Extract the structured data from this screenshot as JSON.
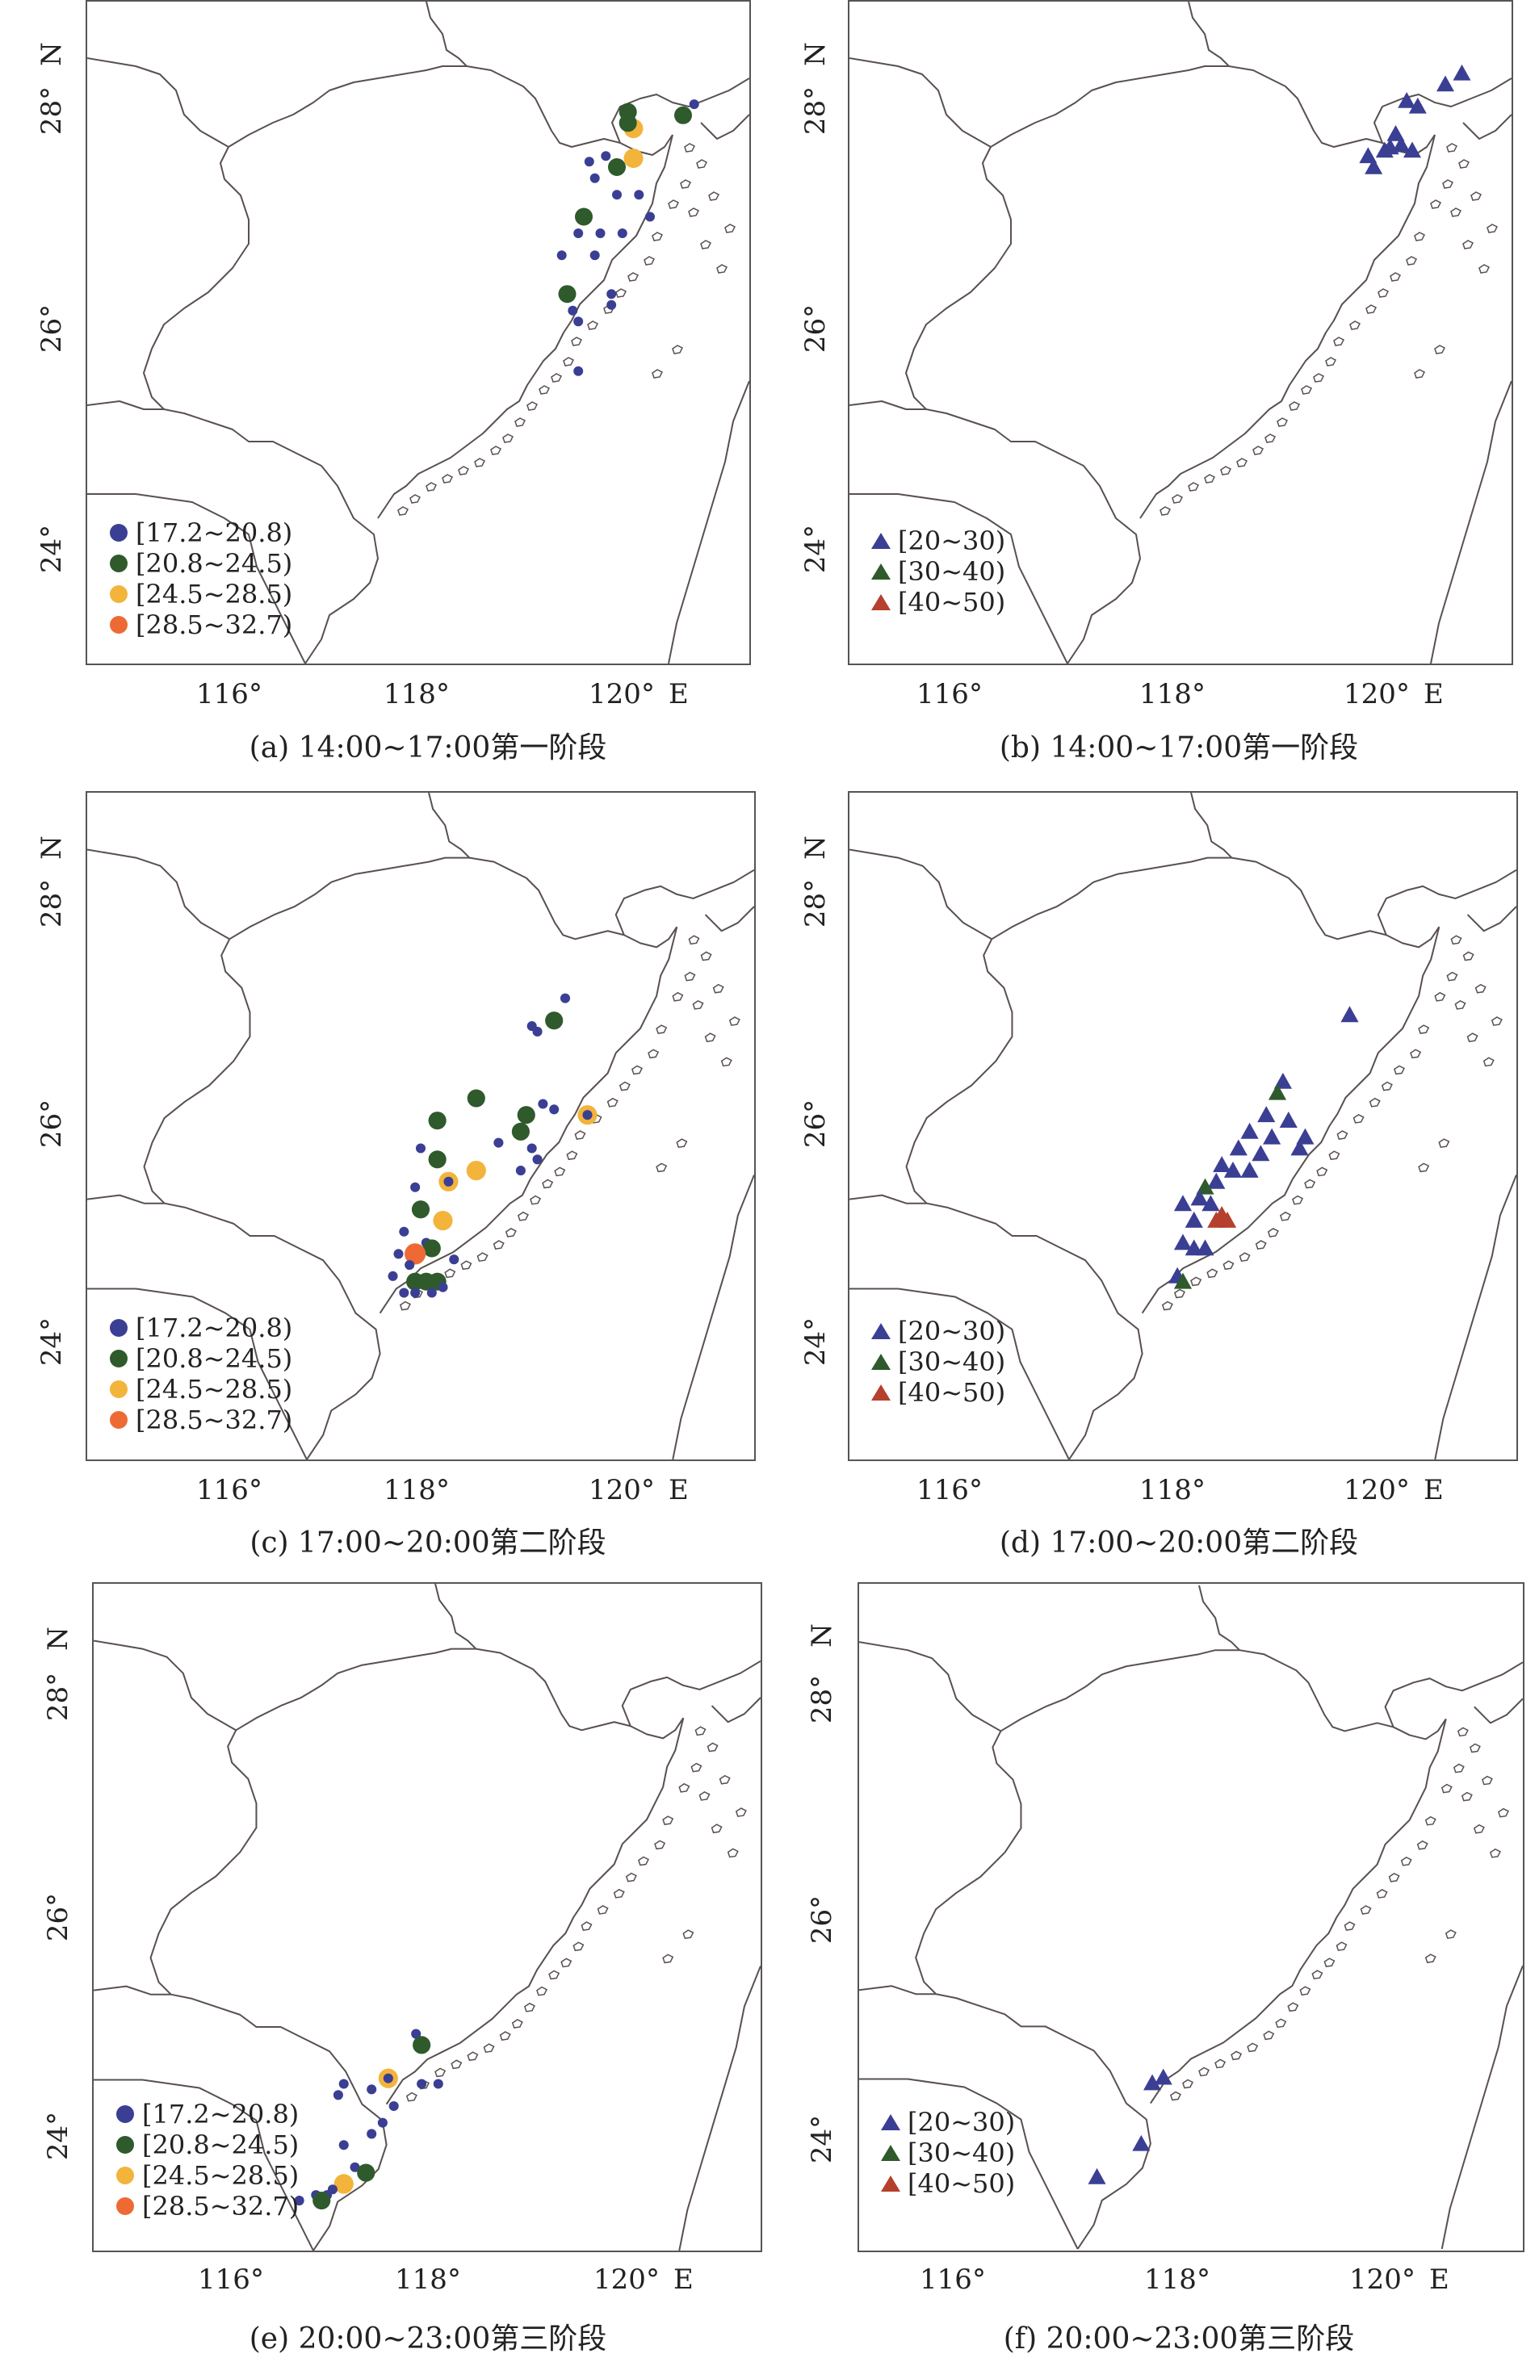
{
  "colors": {
    "blue": "#3a3f94",
    "green": "#2f5a2c",
    "yellow": "#f2b43a",
    "orange": "#ee6a35",
    "red": "#b5402d",
    "boundary": "#5a5050"
  },
  "legends": {
    "wind": [
      {
        "label": "[17.2~20.8)",
        "color_key": "blue"
      },
      {
        "label": "[20.8~24.5)",
        "color_key": "green"
      },
      {
        "label": "[24.5~28.5)",
        "color_key": "yellow"
      },
      {
        "label": "[28.5~32.7)",
        "color_key": "orange"
      }
    ],
    "rain": [
      {
        "label": "[20~30)",
        "color_key": "blue"
      },
      {
        "label": "[30~40)",
        "color_key": "green"
      },
      {
        "label": "[40~50)",
        "color_key": "red"
      }
    ]
  },
  "panels": [
    {
      "id": "a",
      "caption": "(a) 14:00~17:00第一阶段",
      "legend": "wind",
      "marker": "circle",
      "x_ticks": [
        "116°",
        "118°",
        "120°"
      ],
      "y_ticks": [
        "24°",
        "26°",
        "28°"
      ],
      "x_unit": "E",
      "y_unit": "N",
      "points": [
        {
          "lon": 120.5,
          "lat": 28.07,
          "c": "blue",
          "s": 1
        },
        {
          "lon": 120.4,
          "lat": 27.97,
          "c": "green",
          "s": 2
        },
        {
          "lon": 119.9,
          "lat": 28.0,
          "c": "green",
          "s": 2
        },
        {
          "lon": 119.95,
          "lat": 27.85,
          "c": "yellow",
          "s": 3
        },
        {
          "lon": 119.9,
          "lat": 27.9,
          "c": "green",
          "s": 2
        },
        {
          "lon": 119.95,
          "lat": 27.58,
          "c": "yellow",
          "s": 3
        },
        {
          "lon": 119.8,
          "lat": 27.5,
          "c": "green",
          "s": 2
        },
        {
          "lon": 119.7,
          "lat": 27.6,
          "c": "blue",
          "s": 1
        },
        {
          "lon": 119.55,
          "lat": 27.55,
          "c": "blue",
          "s": 1
        },
        {
          "lon": 119.6,
          "lat": 27.4,
          "c": "blue",
          "s": 1
        },
        {
          "lon": 119.8,
          "lat": 27.25,
          "c": "blue",
          "s": 1
        },
        {
          "lon": 120.0,
          "lat": 27.25,
          "c": "blue",
          "s": 1
        },
        {
          "lon": 119.5,
          "lat": 27.05,
          "c": "green",
          "s": 2
        },
        {
          "lon": 119.45,
          "lat": 26.9,
          "c": "blue",
          "s": 1
        },
        {
          "lon": 119.65,
          "lat": 26.9,
          "c": "blue",
          "s": 1
        },
        {
          "lon": 119.85,
          "lat": 26.9,
          "c": "blue",
          "s": 1
        },
        {
          "lon": 120.1,
          "lat": 27.05,
          "c": "blue",
          "s": 1
        },
        {
          "lon": 119.3,
          "lat": 26.7,
          "c": "blue",
          "s": 1
        },
        {
          "lon": 119.6,
          "lat": 26.7,
          "c": "blue",
          "s": 1
        },
        {
          "lon": 119.35,
          "lat": 26.35,
          "c": "green",
          "s": 2
        },
        {
          "lon": 119.4,
          "lat": 26.2,
          "c": "blue",
          "s": 1
        },
        {
          "lon": 119.45,
          "lat": 26.1,
          "c": "blue",
          "s": 1
        },
        {
          "lon": 119.75,
          "lat": 26.35,
          "c": "blue",
          "s": 1
        },
        {
          "lon": 119.75,
          "lat": 26.25,
          "c": "blue",
          "s": 1
        },
        {
          "lon": 119.45,
          "lat": 25.65,
          "c": "blue",
          "s": 1
        }
      ]
    },
    {
      "id": "b",
      "caption": "(b) 14:00~17:00第一阶段",
      "legend": "rain",
      "marker": "triangle",
      "x_ticks": [
        "116°",
        "118°",
        "120°"
      ],
      "y_ticks": [
        "24°",
        "26°",
        "28°"
      ],
      "x_unit": "E",
      "y_unit": "N",
      "points": [
        {
          "lon": 120.55,
          "lat": 28.35,
          "c": "blue"
        },
        {
          "lon": 120.4,
          "lat": 28.25,
          "c": "blue"
        },
        {
          "lon": 120.05,
          "lat": 28.1,
          "c": "blue"
        },
        {
          "lon": 120.15,
          "lat": 28.05,
          "c": "blue"
        },
        {
          "lon": 119.95,
          "lat": 27.8,
          "c": "blue"
        },
        {
          "lon": 120.0,
          "lat": 27.7,
          "c": "blue"
        },
        {
          "lon": 120.1,
          "lat": 27.65,
          "c": "blue"
        },
        {
          "lon": 119.85,
          "lat": 27.65,
          "c": "blue"
        },
        {
          "lon": 119.7,
          "lat": 27.6,
          "c": "blue"
        },
        {
          "lon": 119.75,
          "lat": 27.5,
          "c": "blue"
        },
        {
          "lon": 119.9,
          "lat": 27.68,
          "c": "blue"
        }
      ]
    },
    {
      "id": "c",
      "caption": "(c) 17:00~20:00第二阶段",
      "legend": "wind",
      "marker": "circle",
      "x_ticks": [
        "116°",
        "118°",
        "120°"
      ],
      "y_ticks": [
        "24°",
        "26°",
        "28°"
      ],
      "x_unit": "E",
      "y_unit": "N",
      "points": [
        {
          "lon": 119.3,
          "lat": 27.15,
          "c": "blue",
          "s": 1
        },
        {
          "lon": 119.2,
          "lat": 26.95,
          "c": "green",
          "s": 2
        },
        {
          "lon": 119.0,
          "lat": 26.9,
          "c": "blue",
          "s": 1
        },
        {
          "lon": 119.05,
          "lat": 26.85,
          "c": "blue",
          "s": 1
        },
        {
          "lon": 118.5,
          "lat": 26.25,
          "c": "green",
          "s": 2
        },
        {
          "lon": 119.1,
          "lat": 26.2,
          "c": "blue",
          "s": 1
        },
        {
          "lon": 119.2,
          "lat": 26.15,
          "c": "blue",
          "s": 1
        },
        {
          "lon": 119.5,
          "lat": 26.1,
          "c": "yellow",
          "s": 3
        },
        {
          "lon": 119.5,
          "lat": 26.1,
          "c": "blue",
          "s": 1
        },
        {
          "lon": 118.95,
          "lat": 26.1,
          "c": "green",
          "s": 2
        },
        {
          "lon": 118.9,
          "lat": 25.95,
          "c": "green",
          "s": 2
        },
        {
          "lon": 118.15,
          "lat": 26.05,
          "c": "green",
          "s": 2
        },
        {
          "lon": 118.0,
          "lat": 25.8,
          "c": "blue",
          "s": 1
        },
        {
          "lon": 118.7,
          "lat": 25.85,
          "c": "blue",
          "s": 1
        },
        {
          "lon": 119.0,
          "lat": 25.8,
          "c": "blue",
          "s": 1
        },
        {
          "lon": 119.05,
          "lat": 25.7,
          "c": "blue",
          "s": 1
        },
        {
          "lon": 118.9,
          "lat": 25.6,
          "c": "blue",
          "s": 1
        },
        {
          "lon": 118.15,
          "lat": 25.7,
          "c": "green",
          "s": 2
        },
        {
          "lon": 118.5,
          "lat": 25.6,
          "c": "yellow",
          "s": 3
        },
        {
          "lon": 118.25,
          "lat": 25.5,
          "c": "yellow",
          "s": 3
        },
        {
          "lon": 118.25,
          "lat": 25.5,
          "c": "blue",
          "s": 1
        },
        {
          "lon": 117.95,
          "lat": 25.45,
          "c": "blue",
          "s": 1
        },
        {
          "lon": 118.0,
          "lat": 25.25,
          "c": "green",
          "s": 2
        },
        {
          "lon": 118.2,
          "lat": 25.15,
          "c": "yellow",
          "s": 3
        },
        {
          "lon": 117.85,
          "lat": 25.05,
          "c": "blue",
          "s": 1
        },
        {
          "lon": 118.05,
          "lat": 24.95,
          "c": "blue",
          "s": 1
        },
        {
          "lon": 118.1,
          "lat": 24.9,
          "c": "green",
          "s": 2
        },
        {
          "lon": 117.8,
          "lat": 24.85,
          "c": "blue",
          "s": 1
        },
        {
          "lon": 117.95,
          "lat": 24.85,
          "c": "orange",
          "s": 4
        },
        {
          "lon": 118.3,
          "lat": 24.8,
          "c": "blue",
          "s": 1
        },
        {
          "lon": 117.9,
          "lat": 24.75,
          "c": "blue",
          "s": 1
        },
        {
          "lon": 117.75,
          "lat": 24.65,
          "c": "blue",
          "s": 1
        },
        {
          "lon": 117.95,
          "lat": 24.6,
          "c": "green",
          "s": 2
        },
        {
          "lon": 118.05,
          "lat": 24.6,
          "c": "green",
          "s": 2
        },
        {
          "lon": 118.15,
          "lat": 24.6,
          "c": "green",
          "s": 2
        },
        {
          "lon": 117.85,
          "lat": 24.5,
          "c": "blue",
          "s": 1
        },
        {
          "lon": 117.95,
          "lat": 24.5,
          "c": "blue",
          "s": 1
        },
        {
          "lon": 118.1,
          "lat": 24.5,
          "c": "blue",
          "s": 1
        },
        {
          "lon": 118.2,
          "lat": 24.55,
          "c": "blue",
          "s": 1
        }
      ]
    },
    {
      "id": "d",
      "caption": "(d) 17:00~20:00第二阶段",
      "legend": "rain",
      "marker": "triangle",
      "x_ticks": [
        "116°",
        "118°",
        "120°"
      ],
      "y_ticks": [
        "24°",
        "26°",
        "28°"
      ],
      "x_unit": "E",
      "y_unit": "N",
      "points": [
        {
          "lon": 119.5,
          "lat": 27.0,
          "c": "blue"
        },
        {
          "lon": 118.9,
          "lat": 26.4,
          "c": "blue"
        },
        {
          "lon": 118.85,
          "lat": 26.3,
          "c": "green"
        },
        {
          "lon": 118.75,
          "lat": 26.1,
          "c": "blue"
        },
        {
          "lon": 118.95,
          "lat": 26.05,
          "c": "blue"
        },
        {
          "lon": 118.6,
          "lat": 25.95,
          "c": "blue"
        },
        {
          "lon": 118.8,
          "lat": 25.9,
          "c": "blue"
        },
        {
          "lon": 119.1,
          "lat": 25.9,
          "c": "blue"
        },
        {
          "lon": 119.05,
          "lat": 25.8,
          "c": "blue"
        },
        {
          "lon": 118.5,
          "lat": 25.8,
          "c": "blue"
        },
        {
          "lon": 118.7,
          "lat": 25.75,
          "c": "blue"
        },
        {
          "lon": 118.35,
          "lat": 25.65,
          "c": "blue"
        },
        {
          "lon": 118.45,
          "lat": 25.6,
          "c": "blue"
        },
        {
          "lon": 118.6,
          "lat": 25.6,
          "c": "blue"
        },
        {
          "lon": 118.3,
          "lat": 25.5,
          "c": "blue"
        },
        {
          "lon": 118.2,
          "lat": 25.45,
          "c": "green"
        },
        {
          "lon": 118.15,
          "lat": 25.35,
          "c": "blue"
        },
        {
          "lon": 118.0,
          "lat": 25.3,
          "c": "blue"
        },
        {
          "lon": 118.25,
          "lat": 25.3,
          "c": "blue"
        },
        {
          "lon": 118.35,
          "lat": 25.2,
          "c": "red"
        },
        {
          "lon": 118.3,
          "lat": 25.15,
          "c": "red"
        },
        {
          "lon": 118.4,
          "lat": 25.15,
          "c": "red"
        },
        {
          "lon": 118.1,
          "lat": 25.15,
          "c": "blue"
        },
        {
          "lon": 118.0,
          "lat": 24.95,
          "c": "blue"
        },
        {
          "lon": 118.1,
          "lat": 24.9,
          "c": "blue"
        },
        {
          "lon": 118.2,
          "lat": 24.9,
          "c": "blue"
        },
        {
          "lon": 117.95,
          "lat": 24.65,
          "c": "blue"
        },
        {
          "lon": 118.0,
          "lat": 24.6,
          "c": "green"
        }
      ]
    },
    {
      "id": "e",
      "caption": "(e) 20:00~23:00第三阶段",
      "legend": "wind",
      "marker": "circle",
      "x_ticks": [
        "116°",
        "118°",
        "120°"
      ],
      "y_ticks": [
        "24°",
        "26°",
        "28°"
      ],
      "x_unit": "E",
      "y_unit": "N",
      "points": [
        {
          "lon": 117.9,
          "lat": 24.95,
          "c": "blue",
          "s": 1
        },
        {
          "lon": 117.95,
          "lat": 24.85,
          "c": "green",
          "s": 2
        },
        {
          "lon": 117.65,
          "lat": 24.55,
          "c": "yellow",
          "s": 3
        },
        {
          "lon": 117.65,
          "lat": 24.55,
          "c": "blue",
          "s": 1
        },
        {
          "lon": 117.95,
          "lat": 24.5,
          "c": "blue",
          "s": 1
        },
        {
          "lon": 118.1,
          "lat": 24.5,
          "c": "blue",
          "s": 1
        },
        {
          "lon": 117.25,
          "lat": 24.5,
          "c": "blue",
          "s": 1
        },
        {
          "lon": 117.2,
          "lat": 24.4,
          "c": "blue",
          "s": 1
        },
        {
          "lon": 117.5,
          "lat": 24.45,
          "c": "blue",
          "s": 1
        },
        {
          "lon": 117.7,
          "lat": 24.3,
          "c": "blue",
          "s": 1
        },
        {
          "lon": 117.6,
          "lat": 24.15,
          "c": "blue",
          "s": 1
        },
        {
          "lon": 117.5,
          "lat": 24.05,
          "c": "blue",
          "s": 1
        },
        {
          "lon": 117.25,
          "lat": 23.95,
          "c": "blue",
          "s": 1
        },
        {
          "lon": 117.35,
          "lat": 23.75,
          "c": "blue",
          "s": 1
        },
        {
          "lon": 117.45,
          "lat": 23.7,
          "c": "green",
          "s": 2
        },
        {
          "lon": 117.25,
          "lat": 23.6,
          "c": "yellow",
          "s": 3
        },
        {
          "lon": 117.15,
          "lat": 23.55,
          "c": "blue",
          "s": 1
        },
        {
          "lon": 117.0,
          "lat": 23.5,
          "c": "blue",
          "s": 1
        },
        {
          "lon": 117.1,
          "lat": 23.5,
          "c": "blue",
          "s": 1
        },
        {
          "lon": 117.05,
          "lat": 23.45,
          "c": "green",
          "s": 2
        },
        {
          "lon": 116.85,
          "lat": 23.45,
          "c": "blue",
          "s": 1
        }
      ]
    },
    {
      "id": "f",
      "caption": "(f) 20:00~23:00第三阶段",
      "legend": "rain",
      "marker": "triangle",
      "x_ticks": [
        "116°",
        "118°",
        "120°"
      ],
      "y_ticks": [
        "24°",
        "26°",
        "28°"
      ],
      "x_unit": "E",
      "y_unit": "N",
      "points": [
        {
          "lon": 117.75,
          "lat": 24.55,
          "c": "blue"
        },
        {
          "lon": 117.65,
          "lat": 24.5,
          "c": "blue"
        },
        {
          "lon": 117.55,
          "lat": 23.95,
          "c": "blue"
        },
        {
          "lon": 117.15,
          "lat": 23.65,
          "c": "blue"
        }
      ]
    }
  ]
}
